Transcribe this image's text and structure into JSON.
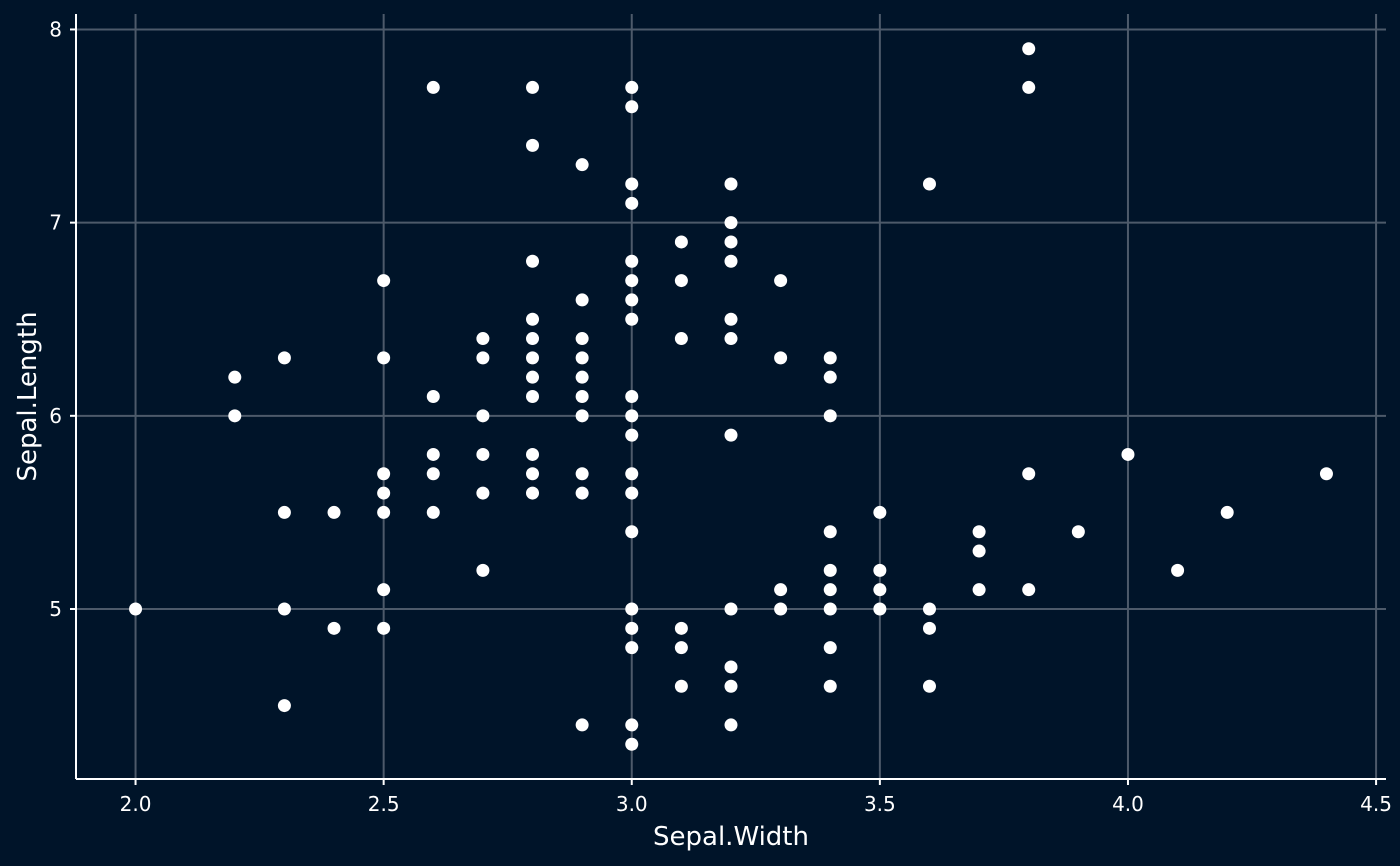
{
  "colors": {
    "background": "#001429",
    "grid": "#4d5a6a",
    "axis": "#ffffff",
    "point": "#ffffff",
    "text": "#ffffff"
  },
  "chart_data": {
    "type": "scatter",
    "title": "",
    "xlabel": "Sepal.Width",
    "ylabel": "Sepal.Length",
    "xlim": [
      1.88,
      4.52
    ],
    "ylim": [
      4.12,
      8.08
    ],
    "x_ticks": [
      2.0,
      2.5,
      3.0,
      3.5,
      4.0,
      4.5
    ],
    "x_tick_labels": [
      "2.0",
      "2.5",
      "3.0",
      "3.5",
      "4.0",
      "4.5"
    ],
    "y_ticks": [
      5,
      6,
      7,
      8
    ],
    "y_tick_labels": [
      "5",
      "6",
      "7",
      "8"
    ],
    "grid": true,
    "legend": "none",
    "points": [
      [
        2.0,
        5.0
      ],
      [
        2.2,
        6.2
      ],
      [
        2.2,
        6.0
      ],
      [
        2.3,
        6.3
      ],
      [
        2.3,
        5.5
      ],
      [
        2.3,
        5.0
      ],
      [
        2.3,
        4.5
      ],
      [
        2.4,
        5.5
      ],
      [
        2.4,
        4.9
      ],
      [
        2.5,
        6.7
      ],
      [
        2.5,
        6.3
      ],
      [
        2.5,
        5.7
      ],
      [
        2.5,
        5.6
      ],
      [
        2.5,
        5.5
      ],
      [
        2.5,
        5.1
      ],
      [
        2.5,
        4.9
      ],
      [
        2.6,
        7.7
      ],
      [
        2.6,
        6.1
      ],
      [
        2.6,
        5.8
      ],
      [
        2.6,
        5.7
      ],
      [
        2.6,
        5.5
      ],
      [
        2.7,
        6.4
      ],
      [
        2.7,
        6.3
      ],
      [
        2.7,
        6.0
      ],
      [
        2.7,
        5.8
      ],
      [
        2.7,
        5.6
      ],
      [
        2.7,
        5.2
      ],
      [
        2.8,
        7.7
      ],
      [
        2.8,
        7.4
      ],
      [
        2.8,
        6.8
      ],
      [
        2.8,
        6.5
      ],
      [
        2.8,
        6.4
      ],
      [
        2.8,
        6.3
      ],
      [
        2.8,
        6.2
      ],
      [
        2.8,
        6.1
      ],
      [
        2.8,
        5.8
      ],
      [
        2.8,
        5.7
      ],
      [
        2.8,
        5.6
      ],
      [
        2.9,
        7.3
      ],
      [
        2.9,
        6.6
      ],
      [
        2.9,
        6.4
      ],
      [
        2.9,
        6.3
      ],
      [
        2.9,
        6.2
      ],
      [
        2.9,
        6.1
      ],
      [
        2.9,
        6.0
      ],
      [
        2.9,
        5.7
      ],
      [
        2.9,
        5.6
      ],
      [
        2.9,
        4.4
      ],
      [
        3.0,
        7.7
      ],
      [
        3.0,
        7.6
      ],
      [
        3.0,
        7.2
      ],
      [
        3.0,
        7.1
      ],
      [
        3.0,
        6.8
      ],
      [
        3.0,
        6.7
      ],
      [
        3.0,
        6.6
      ],
      [
        3.0,
        6.5
      ],
      [
        3.0,
        6.1
      ],
      [
        3.0,
        6.0
      ],
      [
        3.0,
        5.9
      ],
      [
        3.0,
        5.7
      ],
      [
        3.0,
        5.6
      ],
      [
        3.0,
        5.4
      ],
      [
        3.0,
        5.0
      ],
      [
        3.0,
        4.9
      ],
      [
        3.0,
        4.8
      ],
      [
        3.0,
        4.4
      ],
      [
        3.0,
        4.3
      ],
      [
        3.1,
        6.9
      ],
      [
        3.1,
        6.7
      ],
      [
        3.1,
        6.4
      ],
      [
        3.1,
        4.9
      ],
      [
        3.1,
        4.8
      ],
      [
        3.1,
        4.6
      ],
      [
        3.2,
        7.2
      ],
      [
        3.2,
        7.0
      ],
      [
        3.2,
        6.9
      ],
      [
        3.2,
        6.8
      ],
      [
        3.2,
        6.5
      ],
      [
        3.2,
        6.4
      ],
      [
        3.2,
        5.9
      ],
      [
        3.2,
        5.0
      ],
      [
        3.2,
        4.7
      ],
      [
        3.2,
        4.6
      ],
      [
        3.2,
        4.4
      ],
      [
        3.3,
        6.7
      ],
      [
        3.3,
        6.3
      ],
      [
        3.3,
        5.1
      ],
      [
        3.3,
        5.0
      ],
      [
        3.4,
        6.3
      ],
      [
        3.4,
        6.2
      ],
      [
        3.4,
        6.0
      ],
      [
        3.4,
        5.4
      ],
      [
        3.4,
        5.2
      ],
      [
        3.4,
        5.1
      ],
      [
        3.4,
        5.0
      ],
      [
        3.4,
        4.8
      ],
      [
        3.4,
        4.6
      ],
      [
        3.5,
        5.5
      ],
      [
        3.5,
        5.2
      ],
      [
        3.5,
        5.1
      ],
      [
        3.5,
        5.0
      ],
      [
        3.6,
        7.2
      ],
      [
        3.6,
        5.0
      ],
      [
        3.6,
        4.9
      ],
      [
        3.6,
        4.6
      ],
      [
        3.7,
        5.4
      ],
      [
        3.7,
        5.3
      ],
      [
        3.7,
        5.1
      ],
      [
        3.8,
        7.9
      ],
      [
        3.8,
        7.7
      ],
      [
        3.8,
        5.7
      ],
      [
        3.8,
        5.1
      ],
      [
        3.9,
        5.4
      ],
      [
        4.0,
        5.8
      ],
      [
        4.1,
        5.2
      ],
      [
        4.2,
        5.5
      ],
      [
        4.4,
        5.7
      ]
    ]
  }
}
